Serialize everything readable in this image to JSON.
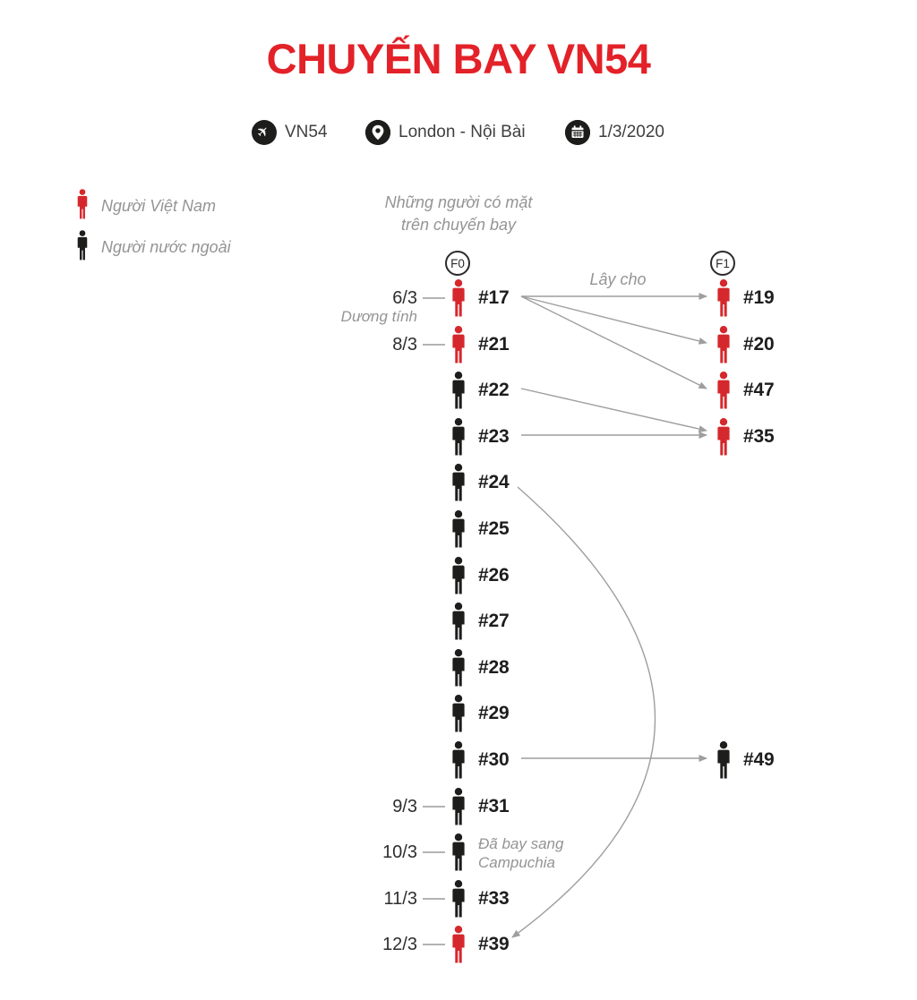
{
  "title": "CHUYẾN BAY VN54",
  "meta": [
    {
      "icon": "plane-icon",
      "label": "VN54"
    },
    {
      "icon": "location-icon",
      "label": "London - Nội Bài"
    },
    {
      "icon": "calendar-icon",
      "label": "1/3/2020"
    }
  ],
  "legend": [
    {
      "type": "vietnamese",
      "label": "Người Việt Nam"
    },
    {
      "type": "foreign",
      "label": "Người nước ngoài"
    }
  ],
  "note": {
    "line1": "Những người có mặt",
    "line2": "trên chuyến bay"
  },
  "generations": {
    "f0": "F0",
    "f1": "F1"
  },
  "f0_rows": [
    {
      "id": "#17",
      "nationality": "vietnamese",
      "date": "6/3",
      "date_note": "Dương tính"
    },
    {
      "id": "#21",
      "nationality": "vietnamese",
      "date": "8/3"
    },
    {
      "id": "#22",
      "nationality": "foreign"
    },
    {
      "id": "#23",
      "nationality": "foreign"
    },
    {
      "id": "#24",
      "nationality": "foreign"
    },
    {
      "id": "#25",
      "nationality": "foreign"
    },
    {
      "id": "#26",
      "nationality": "foreign"
    },
    {
      "id": "#27",
      "nationality": "foreign"
    },
    {
      "id": "#28",
      "nationality": "foreign"
    },
    {
      "id": "#29",
      "nationality": "foreign"
    },
    {
      "id": "#30",
      "nationality": "foreign"
    },
    {
      "id": "#31",
      "nationality": "foreign",
      "date": "9/3"
    },
    {
      "id": "",
      "nationality": "foreign",
      "date": "10/3",
      "side_note": "Đã bay sang\nCampuchia"
    },
    {
      "id": "#33",
      "nationality": "foreign",
      "date": "11/3"
    },
    {
      "id": "#39",
      "nationality": "vietnamese",
      "date": "12/3"
    }
  ],
  "f1_rows": [
    {
      "id": "#19",
      "nationality": "vietnamese",
      "at_row": 0
    },
    {
      "id": "#20",
      "nationality": "vietnamese",
      "at_row": 1
    },
    {
      "id": "#47",
      "nationality": "vietnamese",
      "at_row": 2
    },
    {
      "id": "#35",
      "nationality": "vietnamese",
      "at_row": 3
    },
    {
      "id": "#49",
      "nationality": "foreign",
      "at_row": 10
    }
  ],
  "connections": [
    {
      "from": "#17",
      "to": "#19",
      "label": "Lây cho"
    },
    {
      "from": "#17",
      "to": "#20"
    },
    {
      "from": "#17",
      "to": "#47"
    },
    {
      "from": "#22",
      "to": "#35"
    },
    {
      "from": "#23",
      "to": "#35"
    },
    {
      "from": "#30",
      "to": "#49"
    },
    {
      "from": "#24",
      "to": "#39",
      "style": "curved"
    }
  ],
  "colors": {
    "vietnamese": "#d5282d",
    "foreign": "#1d1d1b",
    "title": "#e32128",
    "arrow": "#9e9e9e",
    "muted_text": "#949494",
    "dark_text": "#1d1d1d"
  }
}
